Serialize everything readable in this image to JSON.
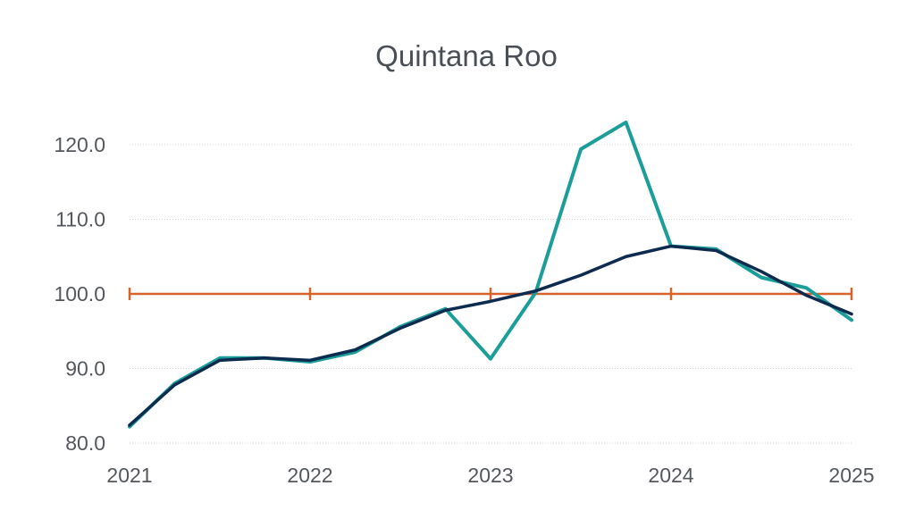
{
  "chart_data": {
    "type": "line",
    "title": "Quintana Roo",
    "xlabel": "",
    "ylabel": "",
    "x": [
      2021.0,
      2021.25,
      2021.5,
      2021.75,
      2022.0,
      2022.25,
      2022.5,
      2022.75,
      2023.0,
      2023.25,
      2023.5,
      2023.75,
      2024.0,
      2024.25,
      2024.5,
      2024.75,
      2025.0
    ],
    "x_ticks": [
      "2021",
      "2022",
      "2023",
      "2024",
      "2025"
    ],
    "x_tick_values": [
      2021,
      2022,
      2023,
      2024,
      2025
    ],
    "y_ticks": [
      "80.0",
      "90.0",
      "100.0",
      "110.0",
      "120.0"
    ],
    "y_tick_values": [
      80,
      90,
      100,
      110,
      120
    ],
    "xlim": [
      2021,
      2025
    ],
    "ylim": [
      80,
      122
    ],
    "grid": true,
    "series": [
      {
        "color": "#1b9e9a",
        "values": [
          82.2,
          88.0,
          91.4,
          91.4,
          90.9,
          92.2,
          95.6,
          98.0,
          91.3,
          100.2,
          119.4,
          123.0,
          106.4,
          106.0,
          102.2,
          100.8,
          96.5
        ]
      },
      {
        "color": "#0d2a4f",
        "values": [
          82.4,
          87.8,
          91.1,
          91.4,
          91.1,
          92.5,
          95.4,
          97.8,
          99.0,
          100.4,
          102.5,
          105.0,
          106.4,
          105.8,
          103.0,
          99.8,
          97.3
        ]
      },
      {
        "color": "#d9622b",
        "values": [
          100,
          100,
          100,
          100,
          100
        ],
        "x": [
          2021,
          2022,
          2023,
          2024,
          2025
        ],
        "markers": "vertical-tick"
      }
    ]
  }
}
